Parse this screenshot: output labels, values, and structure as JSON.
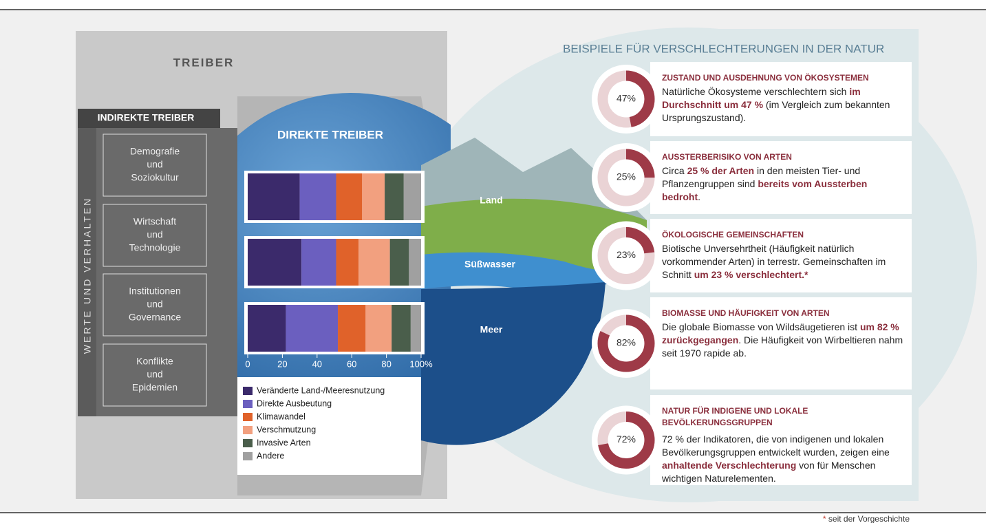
{
  "header": {
    "title": "TREIBER"
  },
  "indirect": {
    "title": "INDIREKTE TREIBER",
    "side_label": "WERTE UND VERHALTEN",
    "items": [
      [
        "Demografie",
        "und",
        "Soziokultur"
      ],
      [
        "Wirtschaft",
        "und",
        "Technologie"
      ],
      [
        "Institutionen",
        "und",
        "Governance"
      ],
      [
        "Konflikte",
        "und",
        "Epidemien"
      ]
    ]
  },
  "direct": {
    "title": "DIREKTE TREIBER",
    "type": "stacked-bar",
    "categories": [
      "Land",
      "Süßwasser",
      "Meer"
    ],
    "xlim": [
      0,
      100
    ],
    "xticks": [
      0,
      20,
      40,
      60,
      80,
      {
        "value": 100,
        "label": "100%"
      }
    ],
    "series": [
      {
        "name": "Veränderte Land-/Meeresnutzung",
        "color": "#3b2a6b",
        "values": [
          30,
          31,
          22
        ]
      },
      {
        "name": "Direkte Ausbeutung",
        "color": "#6b5fbf",
        "values": [
          21,
          20,
          30
        ]
      },
      {
        "name": "Klimawandel",
        "color": "#e0622a",
        "values": [
          15,
          13,
          16
        ]
      },
      {
        "name": "Verschmutzung",
        "color": "#f2a07f",
        "values": [
          13,
          18,
          15
        ]
      },
      {
        "name": "Invasive Arten",
        "color": "#4a5e4b",
        "values": [
          11,
          11,
          11
        ]
      },
      {
        "name": "Andere",
        "color": "#a0a0a0",
        "values": [
          10,
          7,
          6
        ]
      }
    ]
  },
  "examples": {
    "title": "BEISPIELE FÜR VERSCHLECHTERUNGEN IN DER NATUR",
    "arc_color": "#9e3a47",
    "track_color": "#ead3d5",
    "cards": [
      {
        "title": "ZUSTAND UND AUSDEHNUNG VON ÖKOSYSTEMEN",
        "value": 47,
        "value_label": "47%",
        "text": [
          {
            "text": "Natürliche Ökosysteme verschlechtern sich "
          },
          {
            "text": "im Durchschnitt um 47 %",
            "strong": true
          },
          {
            "text": " (im Vergleich zum bekannten Ursprungszustand)."
          }
        ]
      },
      {
        "title": "AUSSTERBERISIKO VON ARTEN",
        "value": 25,
        "value_label": "25%",
        "text": [
          {
            "text": "Circa "
          },
          {
            "text": "25 % der Arten",
            "strong": true
          },
          {
            "text": " in den meisten Tier- und Pflanzengruppen sind "
          },
          {
            "text": "bereits vom Aussterben bedroht",
            "strong": true
          },
          {
            "text": "."
          }
        ]
      },
      {
        "title": "ÖKOLOGISCHE GEMEINSCHAFTEN",
        "value": 23,
        "value_label": "23%",
        "text": [
          {
            "text": "Biotische Unversehrtheit (Häufigkeit natürlich vorkommender Arten) in terrestr. Gemeinschaften im Schnitt "
          },
          {
            "text": "um 23 % verschlechtert.*",
            "strong": true
          }
        ]
      },
      {
        "title": "BIOMASSE UND HÄUFIGKEIT VON ARTEN",
        "value": 82,
        "value_label": "82%",
        "text": [
          {
            "text": "Die globale Biomasse von Wildsäugetieren ist "
          },
          {
            "text": "um 82 % zurückgegangen",
            "strong": true
          },
          {
            "text": ". Die Häufigkeit von Wirbeltieren nahm seit 1970 rapide ab."
          }
        ]
      },
      {
        "title": "NATUR FÜR INDIGENE UND LOKALE BEVÖLKERUNGSGRUPPEN",
        "value": 72,
        "value_label": "72%",
        "text": [
          {
            "text": "72 % der Indikatoren, die von indigenen und lokalen Bevölkerungsgruppen entwickelt wurden, zeigen eine "
          },
          {
            "text": "anhaltende Verschlechterung",
            "strong": true
          },
          {
            "text": " von für Menschen wichtigen Naturelementen."
          }
        ]
      }
    ]
  },
  "footnote": {
    "marker": "*",
    "text": "seit der Vorgeschichte"
  }
}
